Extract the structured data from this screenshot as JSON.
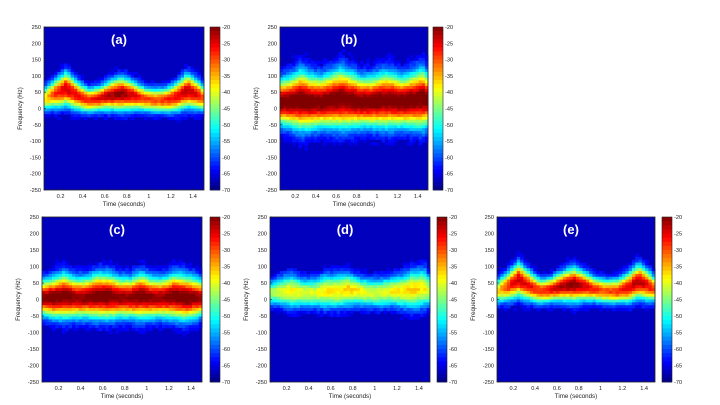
{
  "chart_data": [
    {
      "type": "heatmap",
      "panel_label": "(a)",
      "xlabel": "Time (seconds)",
      "ylabel": "Frequency (Hz)",
      "xlim": [
        0.05,
        1.5
      ],
      "ylim": [
        -250,
        250
      ],
      "xticks": [
        0.2,
        0.4,
        0.6,
        0.8,
        1,
        1.2,
        1.4
      ],
      "yticks": [
        250,
        200,
        150,
        100,
        50,
        0,
        -50,
        -100,
        -150,
        -200,
        -250
      ],
      "colorbar": {
        "ticks": [
          -20,
          -25,
          -30,
          -35,
          -40,
          -45,
          -50,
          -55,
          -60,
          -65,
          -70
        ],
        "min": -70,
        "max": -20
      },
      "ridge": {
        "time": [
          0.05,
          0.15,
          0.25,
          0.35,
          0.45,
          0.55,
          0.65,
          0.75,
          0.85,
          0.95,
          1.05,
          1.15,
          1.25,
          1.35,
          1.45,
          1.5
        ],
        "center_hz": [
          30,
          45,
          60,
          40,
          25,
          30,
          40,
          45,
          40,
          30,
          25,
          25,
          35,
          55,
          40,
          30
        ],
        "half_width_hz": [
          25,
          30,
          35,
          30,
          25,
          25,
          30,
          35,
          30,
          25,
          25,
          25,
          30,
          35,
          30,
          25
        ],
        "peak_db": [
          -40,
          -30,
          -25,
          -28,
          -30,
          -27,
          -24,
          -22,
          -26,
          -30,
          -32,
          -30,
          -27,
          -24,
          -28,
          -32
        ]
      }
    },
    {
      "type": "heatmap",
      "panel_label": "(b)",
      "xlabel": "Time (seconds)",
      "ylabel": "Frequency (Hz)",
      "xlim": [
        0.05,
        1.5
      ],
      "ylim": [
        -250,
        250
      ],
      "xticks": [
        0.2,
        0.4,
        0.6,
        0.8,
        1,
        1.2,
        1.4
      ],
      "yticks": [
        250,
        200,
        150,
        100,
        50,
        0,
        -50,
        -100,
        -150,
        -200,
        -250
      ],
      "colorbar": {
        "ticks": [
          -20,
          -25,
          -30,
          -35,
          -40,
          -45,
          -50,
          -55,
          -60,
          -65,
          -70
        ],
        "min": -70,
        "max": -20
      },
      "ridge": {
        "time": [
          0.05,
          0.15,
          0.25,
          0.35,
          0.45,
          0.55,
          0.65,
          0.75,
          0.85,
          0.95,
          1.05,
          1.15,
          1.25,
          1.35,
          1.45,
          1.5
        ],
        "center_hz": [
          20,
          20,
          25,
          20,
          20,
          25,
          30,
          25,
          20,
          20,
          25,
          25,
          20,
          25,
          30,
          25
        ],
        "half_width_hz": [
          45,
          50,
          60,
          55,
          50,
          55,
          60,
          55,
          50,
          50,
          55,
          55,
          50,
          55,
          60,
          50
        ],
        "peak_db": [
          -20,
          -20,
          -20,
          -20,
          -20,
          -20,
          -20,
          -20,
          -20,
          -20,
          -20,
          -20,
          -20,
          -20,
          -20,
          -20
        ]
      }
    },
    {
      "type": "heatmap",
      "panel_label": "(c)",
      "xlabel": "Time (seconds)",
      "ylabel": "Frequency (Hz)",
      "xlim": [
        0.05,
        1.5
      ],
      "ylim": [
        -250,
        250
      ],
      "xticks": [
        0.2,
        0.4,
        0.6,
        0.8,
        1,
        1.2,
        1.4
      ],
      "yticks": [
        250,
        200,
        150,
        100,
        50,
        0,
        -50,
        -100,
        -150,
        -200,
        -250
      ],
      "colorbar": {
        "ticks": [
          -20,
          -25,
          -30,
          -35,
          -40,
          -45,
          -50,
          -55,
          -60,
          -65,
          -70
        ],
        "min": -70,
        "max": -20
      },
      "ridge": {
        "time": [
          0.05,
          0.15,
          0.25,
          0.35,
          0.45,
          0.55,
          0.65,
          0.75,
          0.85,
          0.95,
          1.05,
          1.15,
          1.25,
          1.35,
          1.45,
          1.5
        ],
        "center_hz": [
          5,
          5,
          10,
          5,
          5,
          10,
          10,
          5,
          5,
          10,
          5,
          5,
          10,
          5,
          5,
          5
        ],
        "half_width_hz": [
          35,
          40,
          45,
          40,
          40,
          45,
          45,
          40,
          40,
          45,
          40,
          40,
          45,
          45,
          40,
          35
        ],
        "peak_db": [
          -22,
          -20,
          -20,
          -22,
          -22,
          -20,
          -20,
          -22,
          -22,
          -20,
          -22,
          -22,
          -20,
          -20,
          -22,
          -24
        ]
      }
    },
    {
      "type": "heatmap",
      "panel_label": "(d)",
      "xlabel": "Time (seconds)",
      "ylabel": "Frequency (Hz)",
      "xlim": [
        0.05,
        1.5
      ],
      "ylim": [
        -250,
        250
      ],
      "xticks": [
        0.2,
        0.4,
        0.6,
        0.8,
        1,
        1.2,
        1.4
      ],
      "yticks": [
        250,
        200,
        150,
        100,
        50,
        0,
        -50,
        -100,
        -150,
        -200,
        -250
      ],
      "colorbar": {
        "ticks": [
          -20,
          -25,
          -30,
          -35,
          -40,
          -45,
          -50,
          -55,
          -60,
          -65,
          -70
        ],
        "min": -70,
        "max": -20
      },
      "ridge": {
        "time": [
          0.05,
          0.15,
          0.25,
          0.35,
          0.45,
          0.55,
          0.65,
          0.75,
          0.85,
          0.95,
          1.05,
          1.15,
          1.25,
          1.35,
          1.45,
          1.5
        ],
        "center_hz": [
          20,
          25,
          25,
          20,
          20,
          25,
          25,
          30,
          25,
          20,
          20,
          25,
          25,
          30,
          35,
          25
        ],
        "half_width_hz": [
          25,
          30,
          35,
          30,
          30,
          35,
          35,
          35,
          30,
          30,
          30,
          30,
          35,
          40,
          40,
          30
        ],
        "peak_db": [
          -45,
          -42,
          -40,
          -42,
          -42,
          -40,
          -40,
          -38,
          -40,
          -42,
          -42,
          -40,
          -40,
          -38,
          -40,
          -44
        ]
      }
    },
    {
      "type": "heatmap",
      "panel_label": "(e)",
      "xlabel": "Time (seconds)",
      "ylabel": "Frequency (Hz)",
      "xlim": [
        0.05,
        1.5
      ],
      "ylim": [
        -250,
        250
      ],
      "xticks": [
        0.2,
        0.4,
        0.6,
        0.8,
        1,
        1.2,
        1.4
      ],
      "yticks": [
        250,
        200,
        150,
        100,
        50,
        0,
        -50,
        -100,
        -150,
        -200,
        -250
      ],
      "colorbar": {
        "ticks": [
          -20,
          -25,
          -30,
          -35,
          -40,
          -45,
          -50,
          -55,
          -60,
          -65,
          -70
        ],
        "min": -70,
        "max": -20
      },
      "ridge": {
        "time": [
          0.05,
          0.15,
          0.25,
          0.35,
          0.45,
          0.55,
          0.65,
          0.75,
          0.85,
          0.95,
          1.05,
          1.15,
          1.25,
          1.35,
          1.45,
          1.5
        ],
        "center_hz": [
          25,
          40,
          60,
          40,
          25,
          30,
          40,
          45,
          40,
          30,
          25,
          25,
          35,
          55,
          40,
          30
        ],
        "half_width_hz": [
          25,
          30,
          35,
          30,
          25,
          25,
          30,
          35,
          30,
          25,
          25,
          25,
          30,
          35,
          30,
          25
        ],
        "peak_db": [
          -40,
          -30,
          -25,
          -28,
          -30,
          -27,
          -24,
          -22,
          -26,
          -30,
          -32,
          -30,
          -27,
          -24,
          -28,
          -32
        ]
      }
    }
  ]
}
